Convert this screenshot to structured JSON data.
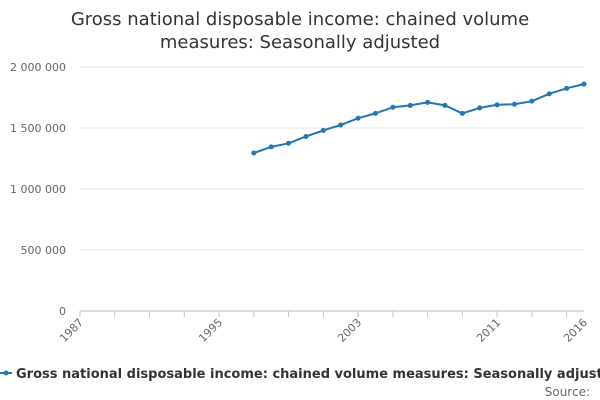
{
  "chart_data": {
    "type": "line",
    "title_lines": [
      "Gross national disposable income: chained volume",
      "measures: Seasonally adjusted"
    ],
    "x_tick_labels": [
      "1987",
      "1995",
      "2003",
      "2011",
      "2016"
    ],
    "y_tick_labels": [
      "0",
      "500 000",
      "1 000 000",
      "1 500 000",
      "2 000 000"
    ],
    "ylim": [
      0,
      2000000
    ],
    "xlim": [
      1987,
      2016
    ],
    "grid": true,
    "legend_position": "bottom",
    "colors": {
      "series": "#1f78b4"
    },
    "series": [
      {
        "name": "Gross national disposable income: chained volume measures: Seasonally adjusted",
        "x": [
          1997,
          1998,
          1999,
          2000,
          2001,
          2002,
          2003,
          2004,
          2005,
          2006,
          2007,
          2008,
          2009,
          2010,
          2011,
          2012,
          2013,
          2014,
          2015,
          2016
        ],
        "values": [
          1295000,
          1345000,
          1375000,
          1430000,
          1480000,
          1525000,
          1580000,
          1620000,
          1670000,
          1685000,
          1710000,
          1685000,
          1620000,
          1665000,
          1690000,
          1695000,
          1720000,
          1780000,
          1825000,
          1860000
        ]
      }
    ]
  },
  "source_label": "Source:"
}
